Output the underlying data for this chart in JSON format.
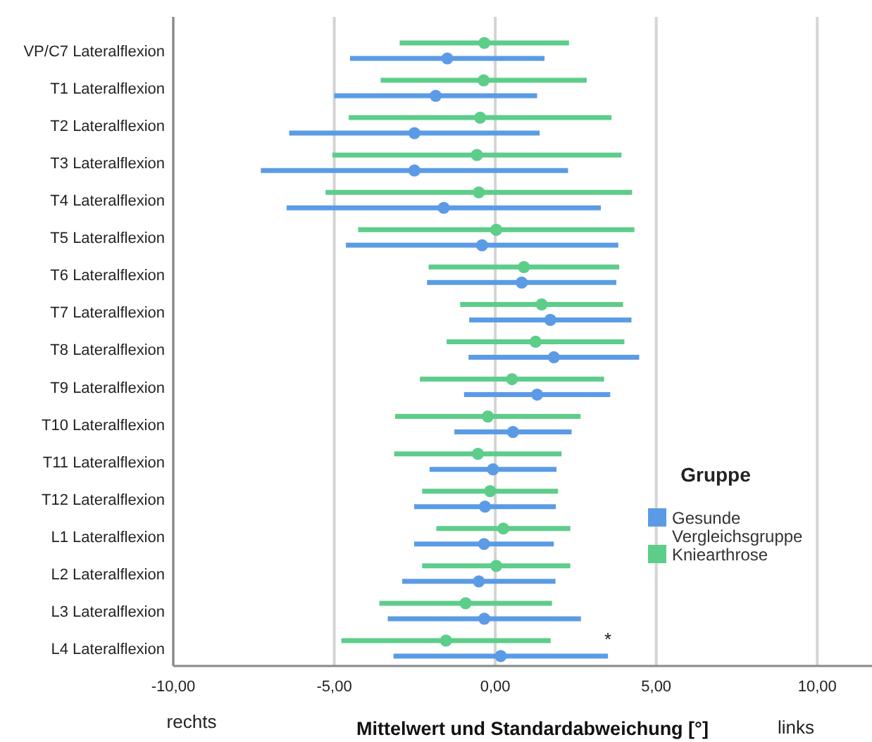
{
  "chart_data": {
    "type": "scatter",
    "orientation": "horizontal",
    "xlabel": "Mittelwert und Standardabweichung [°]",
    "legend_title": "Gruppe",
    "legend": "right",
    "grid": "x",
    "marker": "circle",
    "categories": [
      "VP/C7 Lateralflexion",
      "T1 Lateralflexion",
      "T2 Lateralflexion",
      "T3 Lateralflexion",
      "T4 Lateralflexion",
      "T5 Lateralflexion",
      "T6 Lateralflexion",
      "T7 Lateralflexion",
      "T8 Lateralflexion",
      "T9 Lateralflexion",
      "T10 Lateralflexion",
      "T11 Lateralflexion",
      "T12 Lateralflexion",
      "L1 Lateralflexion",
      "L2 Lateralflexion",
      "L3 Lateralflexion",
      "L4 Lateralflexion"
    ],
    "xlim": [
      -10,
      11.7
    ],
    "xticks": [
      {
        "value": -10,
        "label": "-10,00"
      },
      {
        "value": -5,
        "label": "-5,00"
      },
      {
        "value": 0,
        "label": "0,00"
      },
      {
        "value": 5,
        "label": "5,00"
      },
      {
        "value": 10,
        "label": "10,00"
      }
    ],
    "series": [
      {
        "name": "Gesunde Vergleichsgruppe",
        "color": "#5b9be6",
        "values": [
          -1.49,
          -1.85,
          -2.51,
          -2.51,
          -1.6,
          -0.41,
          0.82,
          1.71,
          1.82,
          1.3,
          0.55,
          -0.07,
          -0.32,
          -0.35,
          -0.51,
          -0.34,
          0.17
        ],
        "errors": [
          3.02,
          3.15,
          3.89,
          4.77,
          4.88,
          4.23,
          2.94,
          2.52,
          2.65,
          2.27,
          1.82,
          1.97,
          2.2,
          2.17,
          2.38,
          3.0,
          3.33
        ]
      },
      {
        "name": "Kniearthrose",
        "color": "#5dcd8a",
        "values": [
          -0.34,
          -0.36,
          -0.47,
          -0.57,
          -0.51,
          0.03,
          0.89,
          1.44,
          1.25,
          0.52,
          -0.23,
          -0.54,
          -0.16,
          0.25,
          0.03,
          -0.92,
          -1.53
        ],
        "errors": [
          2.63,
          3.2,
          4.08,
          4.49,
          4.76,
          4.29,
          2.96,
          2.53,
          2.76,
          2.86,
          2.88,
          2.6,
          2.11,
          2.08,
          2.3,
          2.68,
          3.25
        ]
      }
    ],
    "annotations": [
      {
        "text": "*",
        "x": 3.5,
        "y": "L4 Lateralflexion"
      },
      "rechts",
      "links"
    ]
  }
}
